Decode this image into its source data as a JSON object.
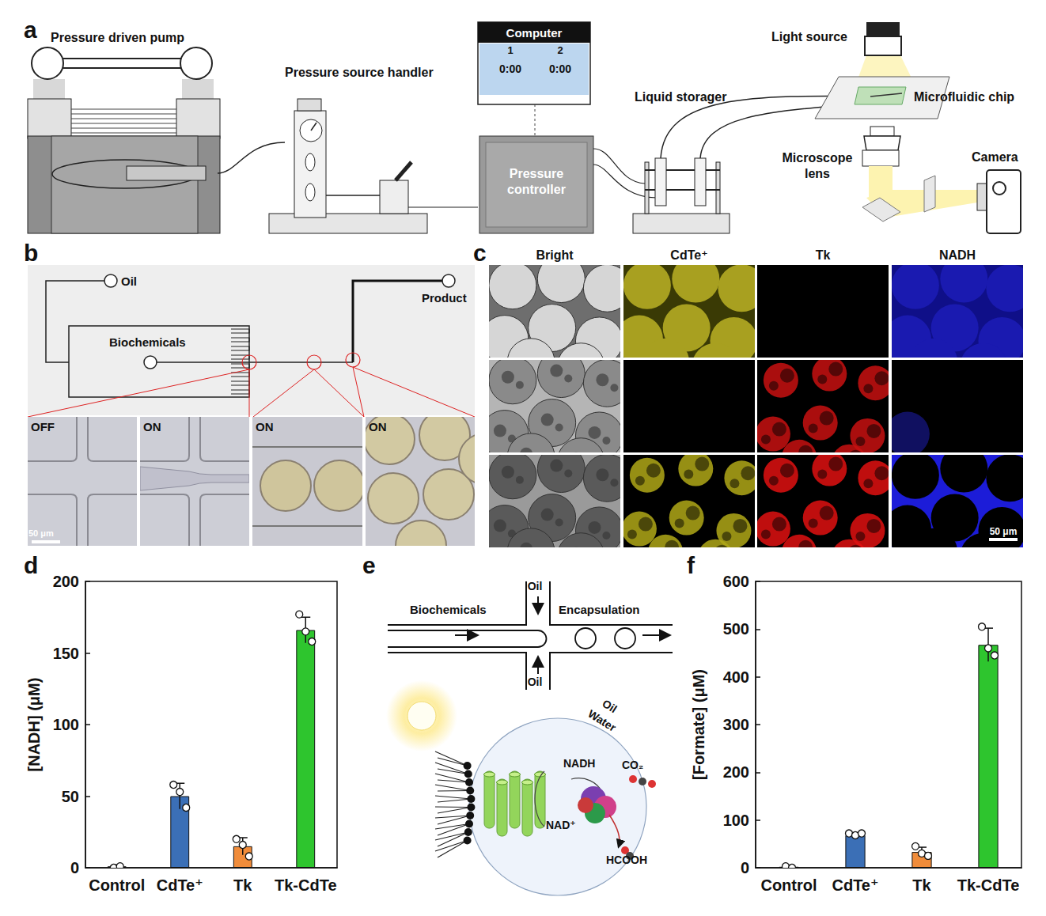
{
  "panel_labels": [
    "a",
    "b",
    "c",
    "d",
    "e",
    "f"
  ],
  "panel_a": {
    "pump": "Pressure driven pump",
    "handler": "Pressure source handler",
    "computer": {
      "title": "Computer",
      "channels": [
        "1",
        "2"
      ],
      "timers": [
        "0:00",
        "0:00"
      ]
    },
    "controller": "Pressure controller",
    "storage": "Liquid storager",
    "light": "Light source",
    "chip": "Microfluidic chip",
    "lens": "Microscope lens",
    "camera": "Camera"
  },
  "panel_b": {
    "oil": "Oil",
    "product": "Product",
    "biochemicals": "Biochemicals",
    "micrographs": [
      "OFF",
      "ON",
      "ON",
      "ON"
    ],
    "scale_bar": "50 μm"
  },
  "panel_c": {
    "columns": [
      "Bright",
      "CdTe⁺",
      "Tk",
      "NADH"
    ],
    "scale_bar": "50 μm"
  },
  "panel_e": {
    "biochemicals": "Biochemicals",
    "oil_top": "Oil",
    "oil_bottom": "Oil",
    "encapsulation": "Encapsulation",
    "phase_oil": "Oil",
    "phase_water": "Water",
    "nadh": "NADH",
    "nad": "NAD⁺",
    "co2": "CO₂",
    "formic": "HCOOH"
  },
  "chart_data": [
    {
      "type": "bar",
      "categories": [
        "Control",
        "CdTe⁺",
        "Tk",
        "Tk-CdTe"
      ],
      "values": [
        1,
        50,
        15,
        166
      ],
      "errors": [
        1,
        9,
        6,
        9
      ],
      "points": [
        [
          0,
          1
        ],
        [
          58,
          53,
          42
        ],
        [
          20,
          16,
          8
        ],
        [
          177,
          165,
          158
        ]
      ],
      "colors": [
        "#9e9e9e",
        "#3b6fb6",
        "#f08c3a",
        "#2ec52e"
      ],
      "ylabel": "[NADH] (μM)",
      "ylim": [
        0,
        200
      ],
      "yticks": [
        0,
        50,
        100,
        150,
        200
      ]
    },
    {
      "type": "bar",
      "categories": [
        "Control",
        "CdTe⁺",
        "Tk",
        "Tk-CdTe"
      ],
      "values": [
        2,
        68,
        33,
        467
      ],
      "errors": [
        2,
        5,
        10,
        35
      ],
      "points": [
        [
          3,
          0
        ],
        [
          72,
          68,
          72
        ],
        [
          45,
          30,
          25
        ],
        [
          505,
          460,
          445
        ]
      ],
      "colors": [
        "#9e9e9e",
        "#3b6fb6",
        "#f08c3a",
        "#2ec52e"
      ],
      "ylabel": "[Formate] (μM)",
      "ylim": [
        0,
        600
      ],
      "yticks": [
        0,
        100,
        200,
        300,
        400,
        500,
        600
      ]
    }
  ]
}
